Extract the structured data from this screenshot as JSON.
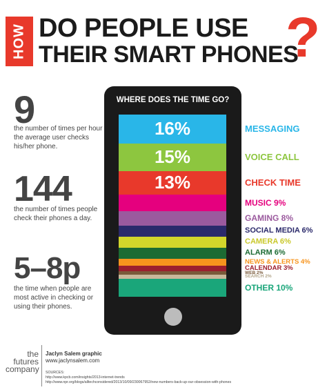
{
  "header": {
    "how": "HOW",
    "line1": "DO PEOPLE USE",
    "line2": "THEIR SMART PHONES",
    "qmark": "?"
  },
  "stats": [
    {
      "number": "9",
      "text": "the number of times per hour the average user checks his/her phone."
    },
    {
      "number": "144",
      "text": "the number of times people check their phones a day."
    },
    {
      "number": "5–8p",
      "text": "the time when people are most active in checking or using their phones."
    }
  ],
  "chart_data": {
    "type": "bar",
    "title": "WHERE DOES THE TIME GO?",
    "unit": "%",
    "categories": [
      "MESSAGING",
      "VOICE CALL",
      "CHECK TIME",
      "MUSIC",
      "GAMING",
      "SOCIAL MEDIA",
      "CAMERA",
      "ALARM",
      "NEWS & ALERTS",
      "CALENDAR",
      "WEB",
      "SEARCH",
      "OTHER"
    ],
    "values": [
      16,
      15,
      13,
      9,
      8,
      6,
      6,
      6,
      4,
      3,
      2,
      2,
      10
    ],
    "value_labels": [
      "16%",
      "15%",
      "13%",
      "",
      "",
      "",
      "",
      "",
      "",
      "",
      "",
      "",
      ""
    ],
    "category_labels": [
      "MESSAGING",
      "VOICE CALL",
      "CHECK TIME",
      "MUSIC 9%",
      "GAMING 8%",
      "SOCIAL MEDIA 6%",
      "CAMERA 6%",
      "ALARM 6%",
      "NEWS & ALERTS 4%",
      "CALENDAR 3%",
      "WEB 2%",
      "SEARCH 2%",
      "OTHER 10%"
    ],
    "colors": [
      "#29b6e8",
      "#8dc63f",
      "#e8392b",
      "#e5007e",
      "#9b5a9e",
      "#2b2a6b",
      "#d3d62b",
      "#1c6b33",
      "#f7941d",
      "#9c1f2e",
      "#7a5a3a",
      "#c9b89a",
      "#1aa67a"
    ],
    "label_colors": [
      "#29b6e8",
      "#8dc63f",
      "#e8392b",
      "#e5007e",
      "#9b5a9e",
      "#2b2a6b",
      "#c9c82a",
      "#1c6b33",
      "#f7941d",
      "#9c1f2e",
      "#7a5a3a",
      "#b2a58a",
      "#1aa67a"
    ]
  },
  "footer": {
    "logo_lines": [
      "the",
      "futures",
      "company"
    ],
    "credit_name": "Jaclyn Salem graphic",
    "credit_url": "www.jaclynsalem.com",
    "sources_label": "SOURCES:",
    "sources": [
      "http://www.kpcb.com/insights/2013-internet-trends",
      "http://www.npr.org/blogs/alltechconsidered/2013/10/09/230067952/new-numbers-back-up-our-obsession-with-phones"
    ]
  }
}
